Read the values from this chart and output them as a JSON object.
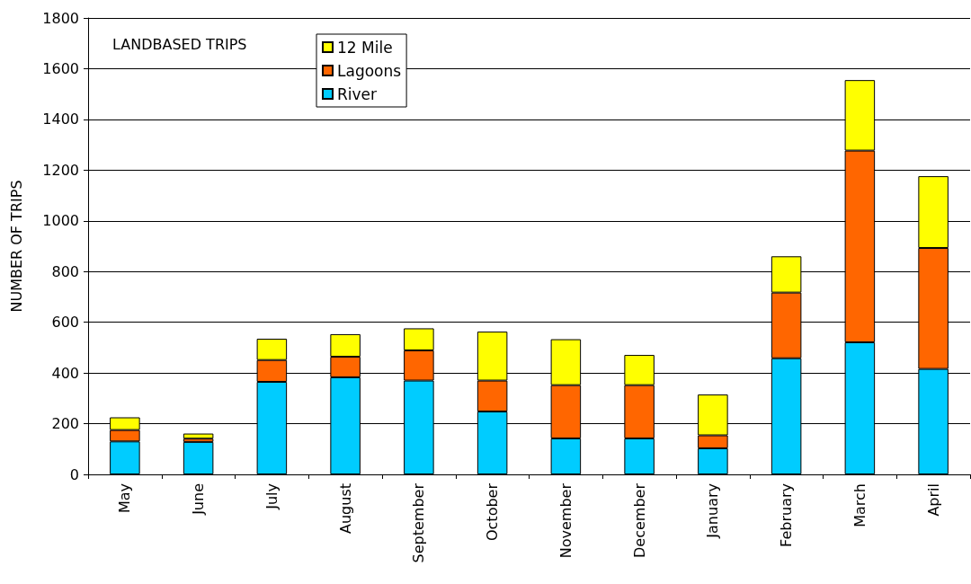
{
  "chart_data": {
    "type": "bar",
    "title": "LANDBASED TRIPS",
    "ylabel": "NUMBER OF TRIPS",
    "categories": [
      "May",
      "June",
      "July",
      "August",
      "September",
      "October",
      "November",
      "December",
      "January",
      "February",
      "March",
      "April"
    ],
    "stacked": true,
    "series": [
      {
        "name": "River",
        "color": "#00ccff",
        "values": [
          130,
          128,
          365,
          383,
          370,
          248,
          142,
          142,
          103,
          458,
          521,
          416
        ]
      },
      {
        "name": "Lagoons",
        "color": "#ff6600",
        "values": [
          45,
          13,
          86,
          81,
          119,
          122,
          210,
          210,
          51,
          259,
          756,
          477
        ]
      },
      {
        "name": "12 Mile",
        "color": "#ffff00",
        "values": [
          50,
          20,
          84,
          89,
          87,
          193,
          181,
          119,
          161,
          143,
          278,
          283
        ]
      }
    ],
    "ylim": [
      0,
      1800
    ],
    "yticks": [
      0,
      200,
      400,
      600,
      800,
      1000,
      1200,
      1400,
      1600,
      1800
    ],
    "grid": true,
    "legend": "top left"
  }
}
